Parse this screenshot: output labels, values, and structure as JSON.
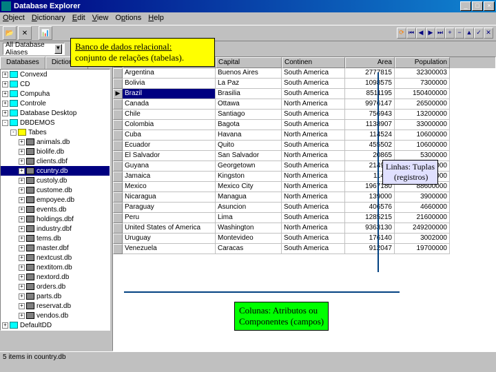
{
  "window": {
    "title": "Database Explorer",
    "minimize": "_",
    "maximize": "□",
    "close": "×"
  },
  "menu": {
    "items": [
      "Object",
      "Dictionary",
      "Edit",
      "View",
      "Options",
      "Help"
    ]
  },
  "toolbar": {
    "combo_label": "All Database Aliases"
  },
  "tabs": {
    "left": [
      "Databases",
      "Dictionary"
    ]
  },
  "tree": {
    "items": [
      {
        "level": 0,
        "expand": "+",
        "icon": "db",
        "label": "Convexd"
      },
      {
        "level": 0,
        "expand": "+",
        "icon": "db",
        "label": "CD"
      },
      {
        "level": 0,
        "expand": "+",
        "icon": "db",
        "label": "Compuha"
      },
      {
        "level": 0,
        "expand": "+",
        "icon": "db",
        "label": "Controle"
      },
      {
        "level": 0,
        "expand": "+",
        "icon": "db",
        "label": "Database Desktop"
      },
      {
        "level": 0,
        "expand": "-",
        "icon": "db",
        "label": "DBDEMOS"
      },
      {
        "level": 1,
        "expand": "-",
        "icon": "folder",
        "label": "Tabes"
      },
      {
        "level": 2,
        "expand": "+",
        "icon": "tbl",
        "label": "animals.db"
      },
      {
        "level": 2,
        "expand": "+",
        "icon": "tbl",
        "label": "biolife.db"
      },
      {
        "level": 2,
        "expand": "+",
        "icon": "tbl",
        "label": "clients.dbf"
      },
      {
        "level": 2,
        "expand": "+",
        "icon": "tbl",
        "label": "ccuntry.db",
        "selected": true
      },
      {
        "level": 2,
        "expand": "+",
        "icon": "tbl",
        "label": "custoly.db"
      },
      {
        "level": 2,
        "expand": "+",
        "icon": "tbl",
        "label": "custome.db"
      },
      {
        "level": 2,
        "expand": "+",
        "icon": "tbl",
        "label": "empoyee.db"
      },
      {
        "level": 2,
        "expand": "+",
        "icon": "tbl",
        "label": "events.db"
      },
      {
        "level": 2,
        "expand": "+",
        "icon": "tbl",
        "label": "holdings.dbf"
      },
      {
        "level": 2,
        "expand": "+",
        "icon": "tbl",
        "label": "industry.dbf"
      },
      {
        "level": 2,
        "expand": "+",
        "icon": "tbl",
        "label": "tems.db"
      },
      {
        "level": 2,
        "expand": "+",
        "icon": "tbl",
        "label": "master.dbf"
      },
      {
        "level": 2,
        "expand": "+",
        "icon": "tbl",
        "label": "nextcust.db"
      },
      {
        "level": 2,
        "expand": "+",
        "icon": "tbl",
        "label": "nextitom.db"
      },
      {
        "level": 2,
        "expand": "+",
        "icon": "tbl",
        "label": "nextord.db"
      },
      {
        "level": 2,
        "expand": "+",
        "icon": "tbl",
        "label": "orders.db"
      },
      {
        "level": 2,
        "expand": "+",
        "icon": "tbl",
        "label": "parts.db"
      },
      {
        "level": 2,
        "expand": "+",
        "icon": "tbl",
        "label": "reservat.db"
      },
      {
        "level": 2,
        "expand": "+",
        "icon": "tbl",
        "label": "vendos.db"
      },
      {
        "level": 0,
        "expand": "+",
        "icon": "db",
        "label": "DefaultDD"
      }
    ]
  },
  "grid": {
    "columns": [
      "Name",
      "Capital",
      "Continen",
      "Area",
      "Population"
    ],
    "rows": [
      {
        "name": "Argentina",
        "capital": "Buenos Aires",
        "continent": "South America",
        "area": "2777815",
        "population": "32300003"
      },
      {
        "name": "Bolivia",
        "capital": "La Paz",
        "continent": "South America",
        "area": "1098575",
        "population": "7300000"
      },
      {
        "name": "Brazil",
        "capital": "Brasilia",
        "continent": "South America",
        "area": "8511195",
        "population": "150400000",
        "selected": true
      },
      {
        "name": "Canada",
        "capital": "Ottawa",
        "continent": "North America",
        "area": "9976147",
        "population": "26500000"
      },
      {
        "name": "Chile",
        "capital": "Santiago",
        "continent": "South America",
        "area": "756943",
        "population": "13200000"
      },
      {
        "name": "Colombia",
        "capital": "Bagota",
        "continent": "South America",
        "area": "1138907",
        "population": "33000000"
      },
      {
        "name": "Cuba",
        "capital": "Havana",
        "continent": "North America",
        "area": "114524",
        "population": "10600000"
      },
      {
        "name": "Ecuador",
        "capital": "Quito",
        "continent": "South America",
        "area": "455502",
        "population": "10600000"
      },
      {
        "name": "El Salvador",
        "capital": "San Salvador",
        "continent": "North America",
        "area": "20865",
        "population": "5300000"
      },
      {
        "name": "Guyana",
        "capital": "Georgetown",
        "continent": "South America",
        "area": "214969",
        "population": "800000"
      },
      {
        "name": "Jamaica",
        "capital": "Kingston",
        "continent": "North America",
        "area": "11424",
        "population": "2500000"
      },
      {
        "name": "Mexico",
        "capital": "Mexico City",
        "continent": "North America",
        "area": "1967180",
        "population": "88600000"
      },
      {
        "name": "Nicaragua",
        "capital": "Managua",
        "continent": "North America",
        "area": "139000",
        "population": "3900000"
      },
      {
        "name": "Paraguay",
        "capital": "Asuncion",
        "continent": "South America",
        "area": "406576",
        "population": "4660000"
      },
      {
        "name": "Peru",
        "capital": "Lima",
        "continent": "South America",
        "area": "1285215",
        "population": "21600000"
      },
      {
        "name": "United States of America",
        "capital": "Washington",
        "continent": "North America",
        "area": "9363130",
        "population": "249200000"
      },
      {
        "name": "Uruguay",
        "capital": "Montevideo",
        "continent": "South America",
        "area": "176140",
        "population": "3002000"
      },
      {
        "name": "Venezuela",
        "capital": "Caracas",
        "continent": "South America",
        "area": "912047",
        "population": "19700000"
      }
    ]
  },
  "statusbar": {
    "text": "5 items in country.db"
  },
  "annotations": {
    "top": {
      "line1": "Banco de dados relacional:",
      "line2": "conjunto de relações (tabelas)."
    },
    "right": {
      "line1": "Linhas: Tuplas",
      "line2": "(registros)"
    },
    "bottom": {
      "line1": "Colunas: Atributos ou",
      "line2": "Componentes (campos)"
    }
  }
}
